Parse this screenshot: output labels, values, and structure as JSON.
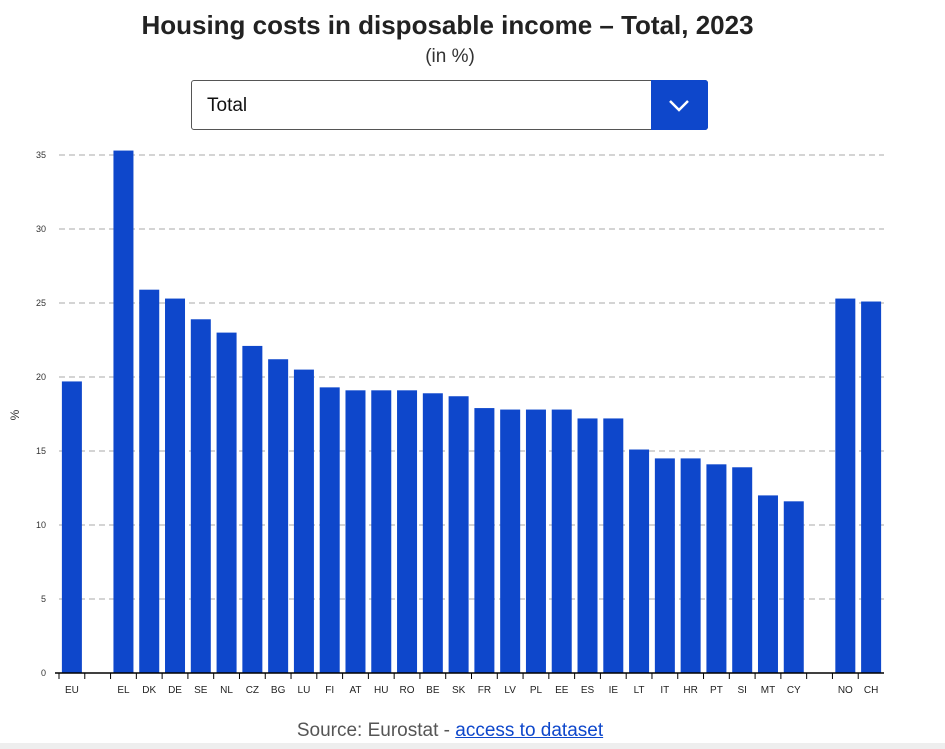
{
  "header": {
    "title": "Housing costs in disposable income – Total, 2023",
    "subtitle": "(in %)"
  },
  "dropdown": {
    "selected": "Total"
  },
  "source": {
    "prefix": "Source: Eurostat - ",
    "link": "access to dataset"
  },
  "colors": {
    "bar": "#0e47cb",
    "grid": "#aaaaaa"
  },
  "chart_data": {
    "type": "bar",
    "title": "Housing costs in disposable income – Total, 2023",
    "xlabel": "",
    "ylabel": "%",
    "ylim": [
      0,
      35
    ],
    "yticks": [
      0,
      5,
      10,
      15,
      20,
      25,
      30,
      35
    ],
    "grid": true,
    "categories": [
      "EU",
      "",
      "EL",
      "DK",
      "DE",
      "SE",
      "NL",
      "CZ",
      "BG",
      "LU",
      "FI",
      "AT",
      "HU",
      "RO",
      "BE",
      "SK",
      "FR",
      "LV",
      "PL",
      "EE",
      "ES",
      "IE",
      "LT",
      "IT",
      "HR",
      "PT",
      "SI",
      "MT",
      "CY",
      "",
      "NO",
      "CH"
    ],
    "values": [
      19.7,
      null,
      35.3,
      25.9,
      25.3,
      23.9,
      23.0,
      22.1,
      21.2,
      20.5,
      19.3,
      19.1,
      19.1,
      19.1,
      18.9,
      18.7,
      17.9,
      17.8,
      17.8,
      17.8,
      17.2,
      17.2,
      15.1,
      14.5,
      14.5,
      14.1,
      13.9,
      12.0,
      11.6,
      null,
      25.3,
      25.1
    ]
  }
}
